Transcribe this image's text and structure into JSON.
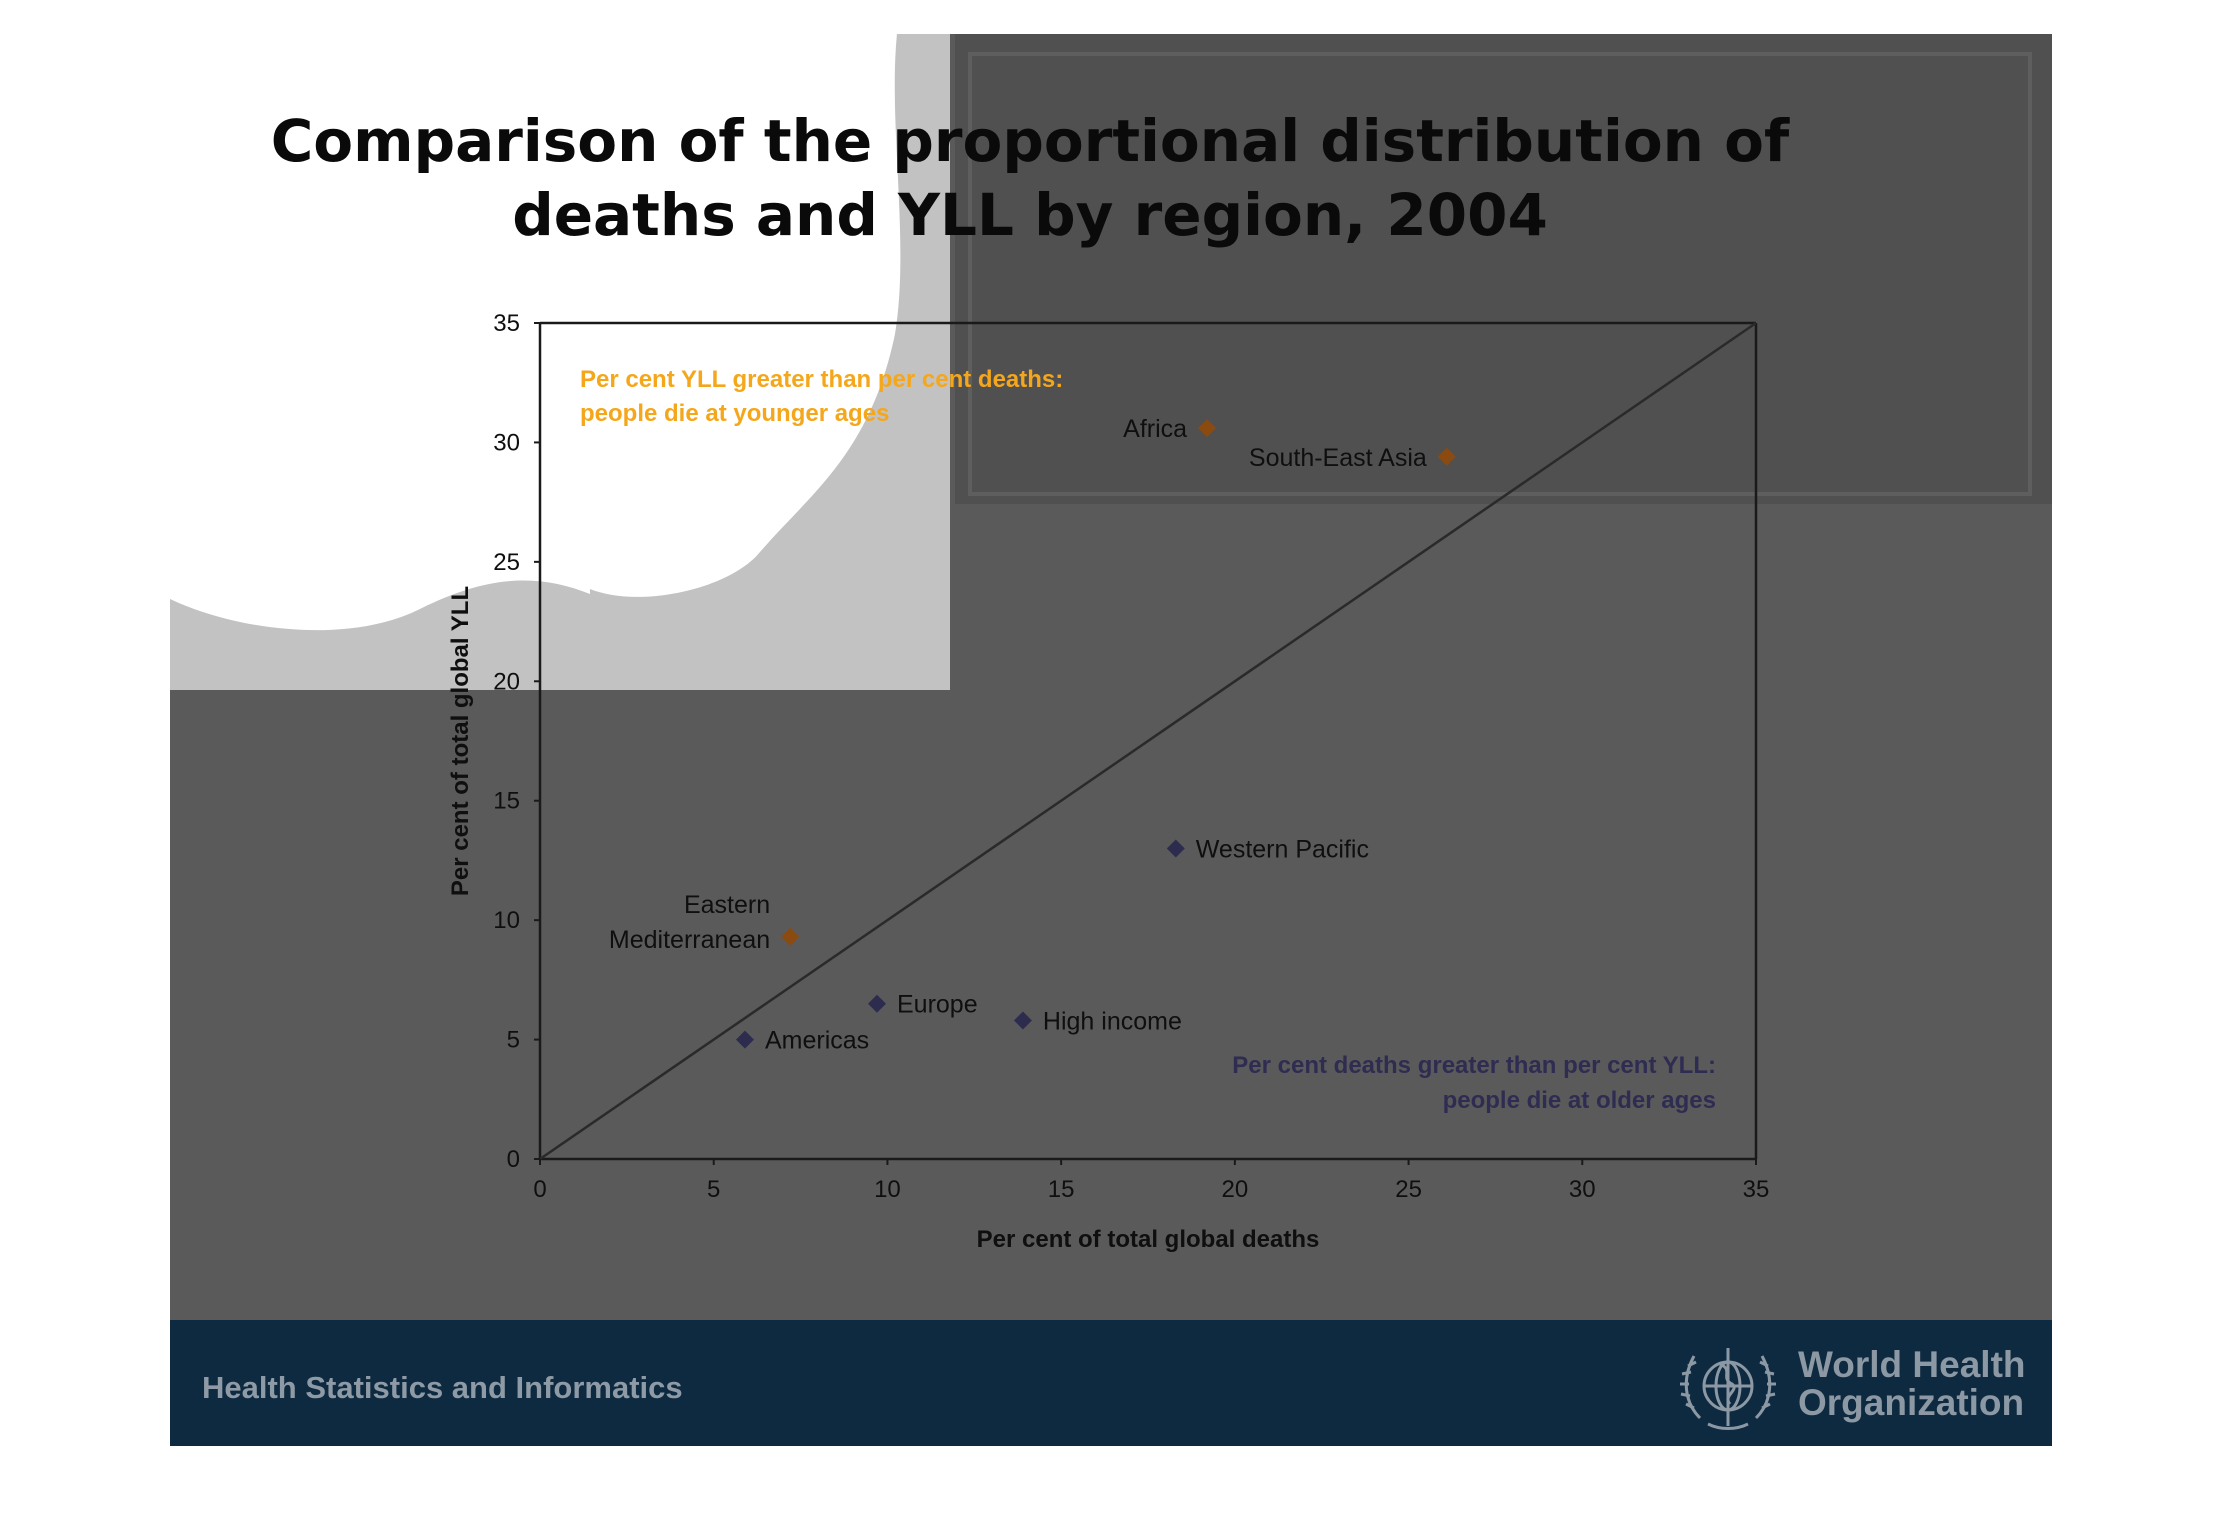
{
  "slide": {
    "title_line1": "Comparison of the proportional distribution of",
    "title_line2": "deaths and YLL by region, 2004",
    "footer_left": "Health Statistics and Informatics",
    "org_name_line1": "World Health",
    "org_name_line2": "Organization",
    "colors": {
      "background": "#5a5a5a",
      "footer": "#0d2a40",
      "younger_ages": "#f5a71c",
      "older_ages": "#2f2c52",
      "marker_orange": "#8a4a10",
      "marker_navy": "#2e2c4e"
    }
  },
  "chart_data": {
    "type": "scatter",
    "xlabel": "Per cent of total global deaths",
    "ylabel": "Per cent of total global YLL",
    "xlim": [
      0,
      35
    ],
    "ylim": [
      0,
      35
    ],
    "xticks": [
      "0",
      "5",
      "10",
      "15",
      "20",
      "25",
      "30",
      "35"
    ],
    "yticks": [
      "0",
      "5",
      "10",
      "15",
      "20",
      "25",
      "30",
      "35"
    ],
    "reference_line": "y = x",
    "grid": false,
    "points": [
      {
        "label": "Africa",
        "x": 19.2,
        "y": 30.6,
        "group": "younger",
        "label_side": "left"
      },
      {
        "label": "South-East Asia",
        "x": 26.1,
        "y": 29.4,
        "group": "younger",
        "label_side": "left"
      },
      {
        "label": "Western Pacific",
        "x": 18.3,
        "y": 13.0,
        "group": "older",
        "label_side": "right"
      },
      {
        "label": "Eastern\nMediterranean",
        "x": 7.2,
        "y": 9.3,
        "group": "younger",
        "label_side": "left"
      },
      {
        "label": "Europe",
        "x": 9.7,
        "y": 6.5,
        "group": "older",
        "label_side": "right"
      },
      {
        "label": "High income",
        "x": 13.9,
        "y": 5.8,
        "group": "older",
        "label_side": "right"
      },
      {
        "label": "Americas",
        "x": 5.9,
        "y": 5.0,
        "group": "older",
        "label_side": "right"
      }
    ],
    "annotations": {
      "younger": {
        "line1": "Per cent YLL greater than per cent deaths:",
        "line2": "people die at younger ages",
        "placement": "top-left"
      },
      "older": {
        "line1": "Per cent deaths greater than per cent YLL:",
        "line2": "people die at older ages",
        "placement": "bottom-right"
      }
    }
  }
}
